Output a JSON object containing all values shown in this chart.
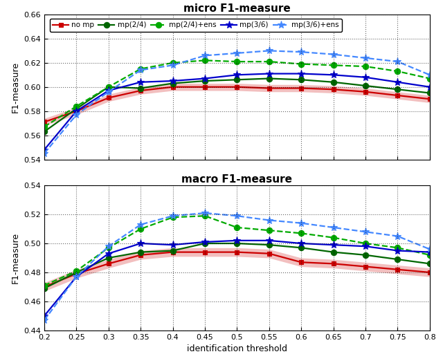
{
  "x": [
    0.2,
    0.25,
    0.3,
    0.35,
    0.4,
    0.45,
    0.5,
    0.55,
    0.6,
    0.65,
    0.7,
    0.75,
    0.8
  ],
  "micro": {
    "no_mp": [
      0.571,
      0.58,
      0.591,
      0.597,
      0.6,
      0.6,
      0.6,
      0.599,
      0.599,
      0.598,
      0.596,
      0.593,
      0.59
    ],
    "mp24": [
      0.563,
      0.582,
      0.6,
      0.599,
      0.603,
      0.605,
      0.606,
      0.607,
      0.606,
      0.604,
      0.601,
      0.598,
      0.595
    ],
    "mp24_ens": [
      0.567,
      0.584,
      0.6,
      0.615,
      0.62,
      0.622,
      0.621,
      0.621,
      0.619,
      0.618,
      0.617,
      0.613,
      0.607
    ],
    "mp36": [
      0.548,
      0.58,
      0.597,
      0.604,
      0.605,
      0.607,
      0.61,
      0.611,
      0.611,
      0.61,
      0.608,
      0.604,
      0.6
    ],
    "mp36_ens": [
      0.545,
      0.577,
      0.596,
      0.614,
      0.618,
      0.626,
      0.628,
      0.63,
      0.629,
      0.627,
      0.624,
      0.621,
      0.61
    ]
  },
  "macro": {
    "no_mp": [
      0.47,
      0.479,
      0.486,
      0.492,
      0.494,
      0.494,
      0.494,
      0.493,
      0.487,
      0.486,
      0.484,
      0.482,
      0.48
    ],
    "mp24": [
      0.469,
      0.48,
      0.49,
      0.494,
      0.495,
      0.5,
      0.5,
      0.499,
      0.497,
      0.494,
      0.492,
      0.489,
      0.486
    ],
    "mp24_ens": [
      0.471,
      0.481,
      0.497,
      0.51,
      0.518,
      0.519,
      0.511,
      0.509,
      0.507,
      0.504,
      0.5,
      0.497,
      0.492
    ],
    "mp36": [
      0.45,
      0.477,
      0.493,
      0.5,
      0.499,
      0.501,
      0.502,
      0.502,
      0.5,
      0.499,
      0.498,
      0.495,
      0.494
    ],
    "mp36_ens": [
      0.447,
      0.477,
      0.498,
      0.513,
      0.519,
      0.521,
      0.519,
      0.516,
      0.514,
      0.511,
      0.508,
      0.505,
      0.496
    ]
  },
  "colors": {
    "no_mp": "#cc0000",
    "mp24": "#006600",
    "mp24_ens": "#00aa00",
    "mp36": "#0000cc",
    "mp36_ens": "#4488ff"
  },
  "micro_ylim": [
    0.54,
    0.66
  ],
  "macro_ylim": [
    0.44,
    0.54
  ],
  "micro_yticks": [
    0.54,
    0.56,
    0.58,
    0.6,
    0.62,
    0.64,
    0.66
  ],
  "macro_yticks": [
    0.44,
    0.46,
    0.48,
    0.5,
    0.52,
    0.54
  ],
  "xticks": [
    0.2,
    0.25,
    0.3,
    0.35,
    0.4,
    0.45,
    0.5,
    0.55,
    0.6,
    0.65,
    0.7,
    0.75,
    0.8
  ],
  "xlabel": "identification threshold",
  "ylabel": "F1-measure",
  "title_micro": "micro F1-measure",
  "title_macro": "macro F1-measure",
  "legend_labels": [
    "no mp",
    "mp(2/4)",
    "mp(2/4)+ens",
    "mp(3/6)",
    "mp(3/6)+ens"
  ],
  "bg_color": "#ffffff"
}
